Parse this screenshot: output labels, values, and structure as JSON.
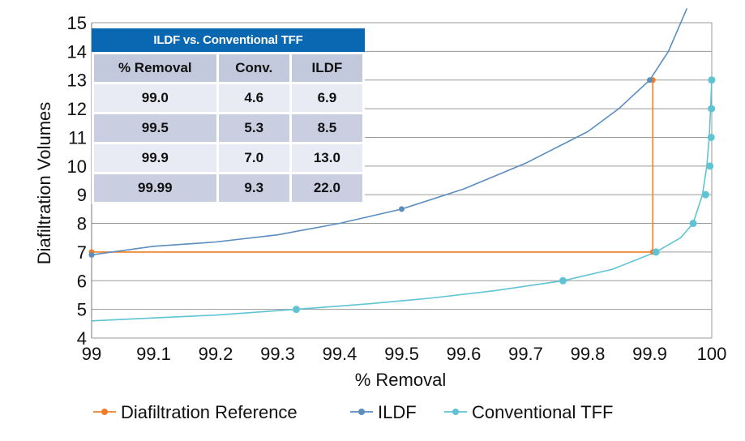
{
  "chart_data": {
    "type": "line",
    "xlabel": "% Removal",
    "ylabel": "Diafiltration Volumes",
    "xlim": [
      99,
      100
    ],
    "ylim": [
      4,
      15
    ],
    "x_ticks": [
      "99",
      "99.1",
      "99.2",
      "99.3",
      "99.4",
      "99.5",
      "99.6",
      "99.7",
      "99.8",
      "99.9",
      "100"
    ],
    "y_ticks": [
      "4",
      "5",
      "6",
      "7",
      "8",
      "9",
      "10",
      "11",
      "12",
      "13",
      "14",
      "15"
    ],
    "grid": "horizontal",
    "legend_position": "bottom",
    "series": [
      {
        "name": "Diafiltration Reference",
        "color": "#f07e26",
        "x": [
          99.0,
          99.905,
          99.905
        ],
        "y": [
          7.0,
          7.0,
          13.0
        ],
        "markers_x": [
          99.0,
          99.905,
          99.905
        ],
        "markers_y": [
          7.0,
          7.0,
          13.0
        ]
      },
      {
        "name": "ILDF",
        "color": "#5b8dbf",
        "x": [
          99.0,
          99.1,
          99.2,
          99.3,
          99.4,
          99.5,
          99.6,
          99.7,
          99.8,
          99.85,
          99.9,
          99.93,
          99.96
        ],
        "y": [
          6.9,
          7.2,
          7.35,
          7.6,
          8.0,
          8.5,
          9.2,
          10.1,
          11.2,
          12.0,
          13.0,
          14.0,
          15.5
        ],
        "markers_x": [
          99.0,
          99.5,
          99.9
        ],
        "markers_y": [
          6.9,
          8.5,
          13.0
        ]
      },
      {
        "name": "Conventional TFF",
        "color": "#5ec4d3",
        "x": [
          99.0,
          99.1,
          99.2,
          99.33,
          99.45,
          99.55,
          99.65,
          99.76,
          99.84,
          99.91,
          99.95,
          99.97,
          99.985,
          99.992,
          99.996,
          99.998,
          100.0
        ],
        "y": [
          4.6,
          4.7,
          4.8,
          5.0,
          5.2,
          5.4,
          5.65,
          6.0,
          6.4,
          7.0,
          7.5,
          8.0,
          9.0,
          10.0,
          11.0,
          12.0,
          13.0
        ],
        "markers_x": [
          99.33,
          99.76,
          99.91,
          99.97,
          99.99,
          99.997,
          99.999,
          99.9995,
          99.9999
        ],
        "markers_y": [
          5.0,
          6.0,
          7.0,
          8.0,
          9.0,
          10.0,
          11.0,
          12.0,
          13.0
        ]
      }
    ]
  },
  "table": {
    "title": "ILDF vs. Conventional TFF",
    "headers": [
      "% Removal",
      "Conv.",
      "ILDF"
    ],
    "rows": [
      [
        "99.0",
        "4.6",
        "6.9"
      ],
      [
        "99.5",
        "5.3",
        "8.5"
      ],
      [
        "99.9",
        "7.0",
        "13.0"
      ],
      [
        "99.99",
        "9.3",
        "22.0"
      ]
    ]
  }
}
